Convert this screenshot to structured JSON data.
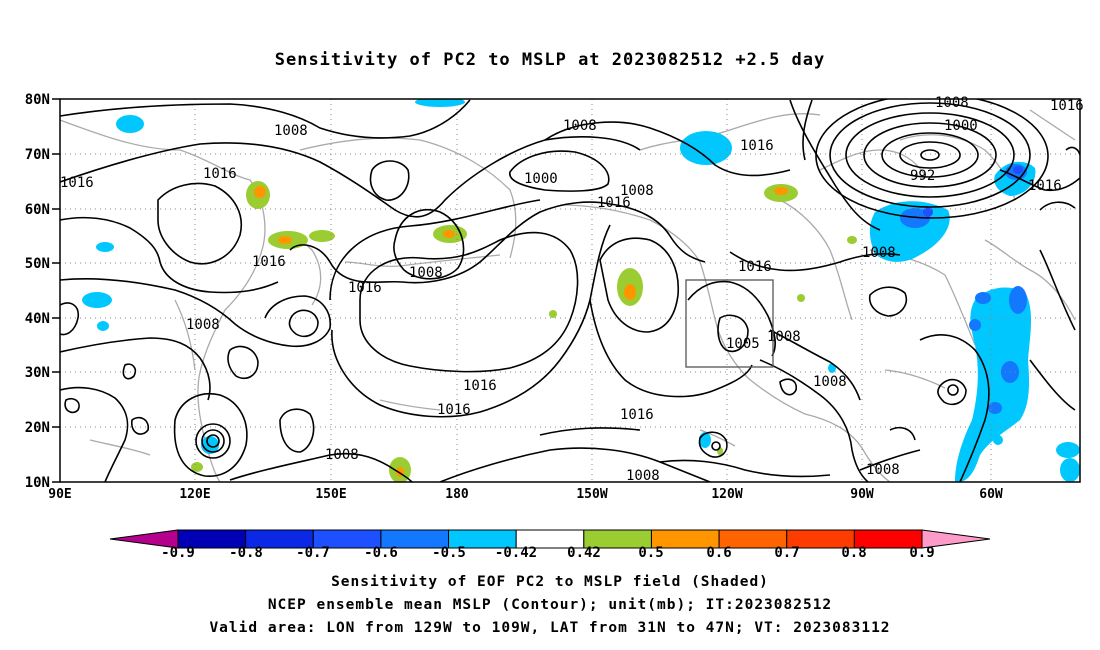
{
  "title": "Sensitivity of PC2 to MSLP at 2023082512 +2.5 day",
  "map": {
    "lat_labels": [
      "80N",
      "70N",
      "60N",
      "50N",
      "40N",
      "30N",
      "20N",
      "10N"
    ],
    "lon_labels": [
      "90E",
      "120E",
      "150E",
      "180",
      "150W",
      "120W",
      "90W",
      "60W"
    ],
    "contour_labels": [
      {
        "text": "1008"
      },
      {
        "text": "1016"
      },
      {
        "text": "1016"
      },
      {
        "text": "1016"
      },
      {
        "text": "1008"
      },
      {
        "text": "1008"
      },
      {
        "text": "1016"
      },
      {
        "text": "1000"
      },
      {
        "text": "1008"
      },
      {
        "text": "1016"
      },
      {
        "text": "1008"
      },
      {
        "text": "1016"
      },
      {
        "text": "1016"
      },
      {
        "text": "1016"
      },
      {
        "text": "1016"
      },
      {
        "text": "1005"
      },
      {
        "text": "1016"
      },
      {
        "text": "1008"
      },
      {
        "text": "1008"
      },
      {
        "text": "1008"
      },
      {
        "text": "1008"
      },
      {
        "text": "1000"
      },
      {
        "text": "992"
      },
      {
        "text": "1016"
      },
      {
        "text": "1016"
      },
      {
        "text": "1008"
      },
      {
        "text": "1008"
      }
    ],
    "valid_box": {
      "lon_range": [
        "129W",
        "109W"
      ],
      "lat_range": [
        "31N",
        "47N"
      ]
    }
  },
  "colorbar": {
    "colors": [
      "#b4008c",
      "#0000b4",
      "#0a28e6",
      "#1e50ff",
      "#1478ff",
      "#00c8ff",
      "#ffffff",
      "#9bcd32",
      "#ff9600",
      "#ff6400",
      "#ff3c00",
      "#ff0000",
      "#ff9bc8"
    ],
    "labels": [
      "-0.9",
      "-0.8",
      "-0.7",
      "-0.6",
      "-0.5",
      "-0.42",
      "0.42",
      "0.5",
      "0.6",
      "0.7",
      "0.8",
      "0.9"
    ]
  },
  "captions": {
    "line1": "Sensitivity of EOF PC2 to MSLP field (Shaded)",
    "line2": "NCEP ensemble mean MSLP (Contour); unit(mb); IT:2023082512",
    "line3": "Valid area: LON from 129W to 109W, LAT from 31N to 47N; VT: 2023083112"
  }
}
